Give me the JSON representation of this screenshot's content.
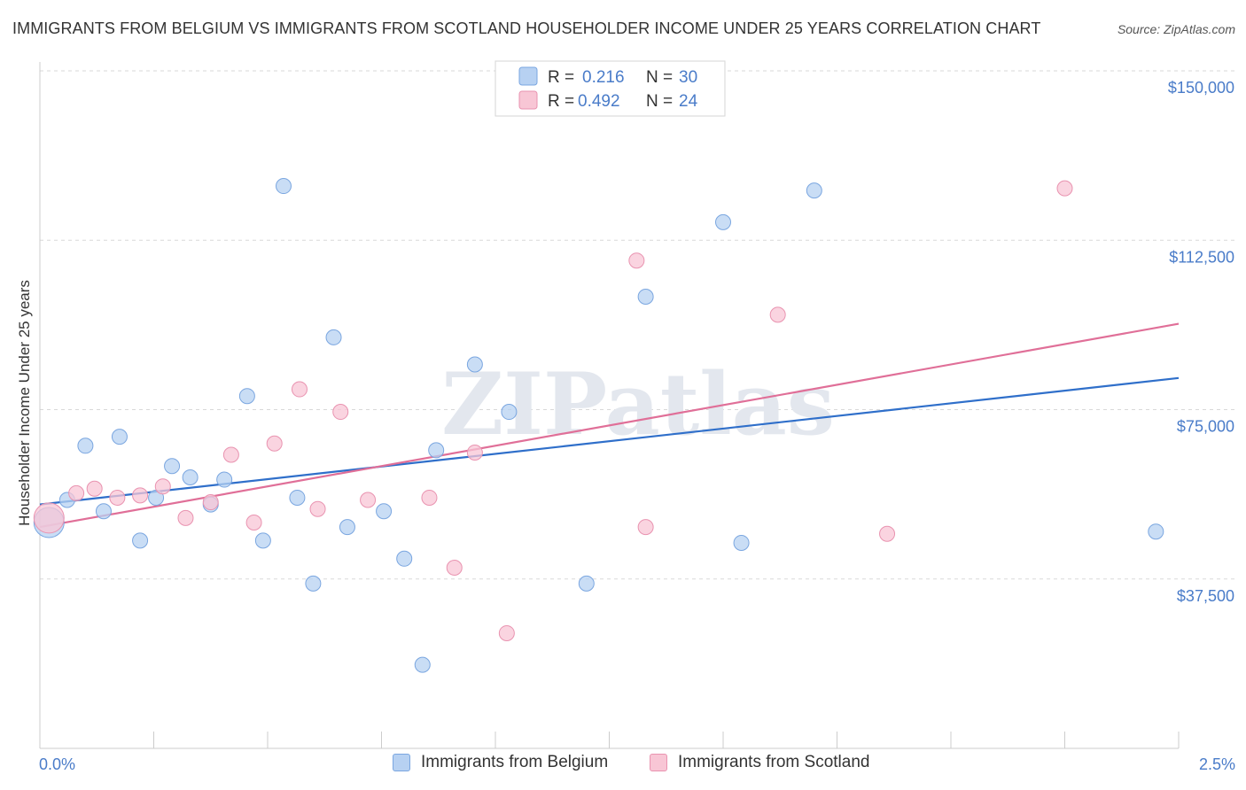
{
  "header": {
    "title": "IMMIGRANTS FROM BELGIUM VS IMMIGRANTS FROM SCOTLAND HOUSEHOLDER INCOME UNDER 25 YEARS CORRELATION CHART",
    "source": "Source: ZipAtlas.com"
  },
  "watermark": "ZIPatlas",
  "colors": {
    "belgium_fill": "#b7d1f2",
    "belgium_stroke": "#7aa6e0",
    "belgium_line": "#2f6fca",
    "scotland_fill": "#f8c6d5",
    "scotland_stroke": "#e993b0",
    "scotland_line": "#e06f98",
    "tick_text": "#4a7cc9",
    "grid": "#d9d9d9"
  },
  "legend": {
    "rows": [
      {
        "r_label": "R =",
        "r_value": "0.216",
        "n_label": "N =",
        "n_value": "30"
      },
      {
        "r_label": "R =",
        "r_value": "0.492",
        "n_label": "N =",
        "n_value": "24"
      }
    ]
  },
  "bottom_legend": {
    "belgium": "Immigrants from Belgium",
    "scotland": "Immigrants from Scotland"
  },
  "chart_data": {
    "type": "scatter",
    "title": "IMMIGRANTS FROM BELGIUM VS IMMIGRANTS FROM SCOTLAND HOUSEHOLDER INCOME UNDER 25 YEARS CORRELATION CHART",
    "xlabel": "",
    "ylabel": "Householder Income Under 25 years",
    "xlim": [
      0,
      2.5
    ],
    "ylim": [
      0,
      150000
    ],
    "x_tick_labels": [
      "0.0%",
      "2.5%"
    ],
    "y_ticks": [
      {
        "value": 37500,
        "label": "$37,500"
      },
      {
        "value": 75000,
        "label": "$75,000"
      },
      {
        "value": 112500,
        "label": "$112,500"
      },
      {
        "value": 150000,
        "label": "$150,000"
      }
    ],
    "grid": true,
    "series": [
      {
        "name": "Immigrants from Belgium",
        "r": 0.216,
        "n": 30,
        "trend": {
          "x": [
            0,
            2.5
          ],
          "y": [
            54000,
            82000
          ]
        },
        "points": [
          {
            "x": 0.02,
            "y": 50000,
            "big": true
          },
          {
            "x": 0.06,
            "y": 55000
          },
          {
            "x": 0.1,
            "y": 67000
          },
          {
            "x": 0.14,
            "y": 52500
          },
          {
            "x": 0.175,
            "y": 69000
          },
          {
            "x": 0.22,
            "y": 46000
          },
          {
            "x": 0.255,
            "y": 55500
          },
          {
            "x": 0.29,
            "y": 62500
          },
          {
            "x": 0.33,
            "y": 60000
          },
          {
            "x": 0.375,
            "y": 54000
          },
          {
            "x": 0.405,
            "y": 59500
          },
          {
            "x": 0.455,
            "y": 78000
          },
          {
            "x": 0.49,
            "y": 46000
          },
          {
            "x": 0.535,
            "y": 124500
          },
          {
            "x": 0.565,
            "y": 55500
          },
          {
            "x": 0.6,
            "y": 36500
          },
          {
            "x": 0.645,
            "y": 91000
          },
          {
            "x": 0.675,
            "y": 49000
          },
          {
            "x": 0.755,
            "y": 52500
          },
          {
            "x": 0.8,
            "y": 42000
          },
          {
            "x": 0.84,
            "y": 18500
          },
          {
            "x": 0.87,
            "y": 66000
          },
          {
            "x": 0.955,
            "y": 85000
          },
          {
            "x": 1.03,
            "y": 74500
          },
          {
            "x": 1.2,
            "y": 36500
          },
          {
            "x": 1.33,
            "y": 100000
          },
          {
            "x": 1.5,
            "y": 116500
          },
          {
            "x": 1.54,
            "y": 45500
          },
          {
            "x": 1.7,
            "y": 123500
          },
          {
            "x": 2.45,
            "y": 48000
          }
        ]
      },
      {
        "name": "Immigrants from Scotland",
        "r": 0.492,
        "n": 24,
        "trend": {
          "x": [
            0,
            2.5
          ],
          "y": [
            49000,
            94000
          ]
        },
        "points": [
          {
            "x": 0.02,
            "y": 51000,
            "big": true
          },
          {
            "x": 0.08,
            "y": 56500
          },
          {
            "x": 0.12,
            "y": 57500
          },
          {
            "x": 0.17,
            "y": 55500
          },
          {
            "x": 0.22,
            "y": 56000
          },
          {
            "x": 0.27,
            "y": 58000
          },
          {
            "x": 0.32,
            "y": 51000
          },
          {
            "x": 0.375,
            "y": 54500
          },
          {
            "x": 0.42,
            "y": 65000
          },
          {
            "x": 0.47,
            "y": 50000
          },
          {
            "x": 0.515,
            "y": 67500
          },
          {
            "x": 0.57,
            "y": 79500
          },
          {
            "x": 0.61,
            "y": 53000
          },
          {
            "x": 0.66,
            "y": 74500
          },
          {
            "x": 0.72,
            "y": 55000
          },
          {
            "x": 0.855,
            "y": 55500
          },
          {
            "x": 0.91,
            "y": 40000
          },
          {
            "x": 0.955,
            "y": 65500
          },
          {
            "x": 1.025,
            "y": 25500
          },
          {
            "x": 1.31,
            "y": 108000
          },
          {
            "x": 1.33,
            "y": 49000
          },
          {
            "x": 1.62,
            "y": 96000
          },
          {
            "x": 1.86,
            "y": 47500
          },
          {
            "x": 2.25,
            "y": 124000
          }
        ]
      }
    ]
  }
}
